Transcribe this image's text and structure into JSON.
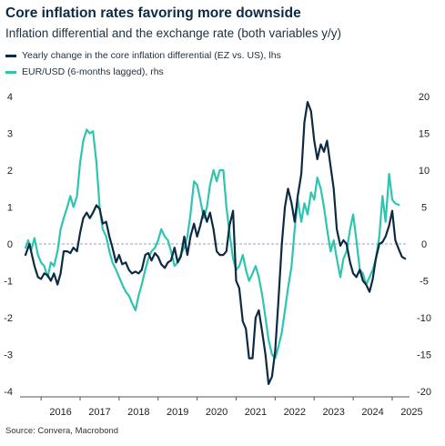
{
  "title": "Core inflation rates favoring more downside",
  "subtitle": "Inflation differential and the exchange rate (both variables y/y)",
  "source": "Source: Convera, Macrobond",
  "colors": {
    "navy": "#0c2a44",
    "teal": "#2ec5b0",
    "zero_line": "#9aa0c8"
  },
  "chart_data": {
    "type": "line",
    "legend": [
      "Yearly change in the core inflation differential (EZ vs. US), lhs",
      "EUR/USD (6-months lagged), rhs"
    ],
    "x_tick_labels": [
      "2016",
      "2017",
      "2018",
      "2019",
      "2020",
      "2021",
      "2022",
      "2023",
      "2024",
      "2025"
    ],
    "y_left": {
      "ticks": [
        4,
        3,
        2,
        1,
        0,
        -1,
        -2,
        -3,
        -4
      ],
      "range": [
        -4.2,
        4.2
      ]
    },
    "y_right": {
      "ticks": [
        20,
        15,
        10,
        5,
        0,
        -5,
        -10,
        -15,
        -20
      ],
      "range": [
        -21,
        21
      ]
    },
    "zero_line": "dashed",
    "series": [
      {
        "name": "Yearly change in the core inflation differential (EZ vs. US), lhs",
        "axis": "left",
        "color": "#0c2a44",
        "points": [
          [
            2015.6,
            -0.3
          ],
          [
            2015.7,
            0.0
          ],
          [
            2015.83,
            -0.6
          ],
          [
            2015.92,
            -0.9
          ],
          [
            2016.0,
            -0.95
          ],
          [
            2016.08,
            -0.8
          ],
          [
            2016.17,
            -0.85
          ],
          [
            2016.25,
            -1.0
          ],
          [
            2016.33,
            -0.8
          ],
          [
            2016.42,
            -1.1
          ],
          [
            2016.5,
            -0.8
          ],
          [
            2016.58,
            -0.2
          ],
          [
            2016.67,
            -0.2
          ],
          [
            2016.75,
            -0.25
          ],
          [
            2016.83,
            -0.1
          ],
          [
            2016.92,
            -0.2
          ],
          [
            2017.0,
            0.3
          ],
          [
            2017.08,
            0.7
          ],
          [
            2017.17,
            0.85
          ],
          [
            2017.25,
            0.7
          ],
          [
            2017.33,
            0.85
          ],
          [
            2017.42,
            1.05
          ],
          [
            2017.5,
            0.95
          ],
          [
            2017.58,
            0.55
          ],
          [
            2017.67,
            0.6
          ],
          [
            2017.75,
            0.2
          ],
          [
            2017.83,
            -0.1
          ],
          [
            2017.92,
            -0.5
          ],
          [
            2018.0,
            -0.3
          ],
          [
            2018.08,
            -0.55
          ],
          [
            2018.17,
            -0.5
          ],
          [
            2018.25,
            -0.7
          ],
          [
            2018.33,
            -0.8
          ],
          [
            2018.42,
            -0.75
          ],
          [
            2018.5,
            -0.8
          ],
          [
            2018.58,
            -0.7
          ],
          [
            2018.67,
            -0.3
          ],
          [
            2018.75,
            -0.25
          ],
          [
            2018.83,
            -0.45
          ],
          [
            2018.92,
            -0.25
          ],
          [
            2019.0,
            -0.35
          ],
          [
            2019.08,
            -0.55
          ],
          [
            2019.17,
            -0.65
          ],
          [
            2019.25,
            -0.5
          ],
          [
            2019.33,
            -0.45
          ],
          [
            2019.42,
            -0.1
          ],
          [
            2019.5,
            -0.5
          ],
          [
            2019.58,
            -0.35
          ],
          [
            2019.67,
            0.2
          ],
          [
            2019.75,
            -0.3
          ],
          [
            2019.83,
            0.2
          ],
          [
            2019.92,
            0.55
          ],
          [
            2020.0,
            0.2
          ],
          [
            2020.08,
            0.5
          ],
          [
            2020.17,
            0.9
          ],
          [
            2020.25,
            0.6
          ],
          [
            2020.33,
            0.85
          ],
          [
            2020.42,
            0.4
          ],
          [
            2020.5,
            -0.2
          ],
          [
            2020.58,
            -0.3
          ],
          [
            2020.67,
            -0.3
          ],
          [
            2020.75,
            -0.2
          ],
          [
            2020.83,
            0.5
          ],
          [
            2020.92,
            0.9
          ],
          [
            2021.0,
            -1.0
          ],
          [
            2021.08,
            -1.2
          ],
          [
            2021.17,
            -2.1
          ],
          [
            2021.25,
            -2.3
          ],
          [
            2021.33,
            -3.1
          ],
          [
            2021.42,
            -3.1
          ],
          [
            2021.5,
            -2.0
          ],
          [
            2021.58,
            -1.8
          ],
          [
            2021.67,
            -2.4
          ],
          [
            2021.75,
            -3.0
          ],
          [
            2021.83,
            -3.8
          ],
          [
            2021.92,
            -3.6
          ],
          [
            2022.0,
            -2.9
          ],
          [
            2022.08,
            -1.6
          ],
          [
            2022.17,
            0.0
          ],
          [
            2022.25,
            1.0
          ],
          [
            2022.33,
            1.5
          ],
          [
            2022.42,
            1.1
          ],
          [
            2022.5,
            0.6
          ],
          [
            2022.58,
            1.3
          ],
          [
            2022.67,
            1.9
          ],
          [
            2022.75,
            3.3
          ],
          [
            2022.83,
            3.85
          ],
          [
            2022.92,
            3.6
          ],
          [
            2023.0,
            2.8
          ],
          [
            2023.08,
            2.3
          ],
          [
            2023.17,
            2.7
          ],
          [
            2023.25,
            2.5
          ],
          [
            2023.33,
            2.8
          ],
          [
            2023.42,
            2.1
          ],
          [
            2023.5,
            1.5
          ],
          [
            2023.58,
            0.4
          ],
          [
            2023.67,
            -0.05
          ],
          [
            2023.75,
            0.1
          ],
          [
            2023.83,
            0.0
          ],
          [
            2023.92,
            -0.5
          ],
          [
            2024.0,
            -0.8
          ],
          [
            2024.08,
            -0.9
          ],
          [
            2024.17,
            -0.7
          ],
          [
            2024.25,
            -1.0
          ],
          [
            2024.33,
            -1.1
          ],
          [
            2024.42,
            -1.3
          ],
          [
            2024.5,
            -0.95
          ],
          [
            2024.58,
            -0.4
          ],
          [
            2024.67,
            0.0
          ],
          [
            2024.75,
            0.05
          ],
          [
            2024.83,
            0.2
          ],
          [
            2024.92,
            0.5
          ],
          [
            2025.0,
            0.9
          ],
          [
            2025.08,
            0.1
          ],
          [
            2025.17,
            -0.15
          ],
          [
            2025.25,
            -0.35
          ],
          [
            2025.33,
            -0.4
          ]
        ]
      },
      {
        "name": "EUR/USD (6-months lagged), rhs",
        "axis": "right",
        "color": "#2ec5b0",
        "points": [
          [
            2015.6,
            -0.5
          ],
          [
            2015.67,
            0.5
          ],
          [
            2015.75,
            -0.8
          ],
          [
            2015.83,
            0.8
          ],
          [
            2015.92,
            -1.5
          ],
          [
            2016.0,
            -2.5
          ],
          [
            2016.08,
            -3.0
          ],
          [
            2016.17,
            -4.5
          ],
          [
            2016.25,
            -2.5
          ],
          [
            2016.33,
            -3.0
          ],
          [
            2016.42,
            -1.0
          ],
          [
            2016.5,
            2.0
          ],
          [
            2016.58,
            3.5
          ],
          [
            2016.67,
            5.0
          ],
          [
            2016.75,
            6.5
          ],
          [
            2016.83,
            5.0
          ],
          [
            2016.92,
            6.5
          ],
          [
            2017.0,
            11.0
          ],
          [
            2017.08,
            14.0
          ],
          [
            2017.17,
            15.5
          ],
          [
            2017.25,
            15.0
          ],
          [
            2017.33,
            15.3
          ],
          [
            2017.42,
            11.0
          ],
          [
            2017.5,
            5.0
          ],
          [
            2017.58,
            2.0
          ],
          [
            2017.67,
            1.0
          ],
          [
            2017.75,
            -1.0
          ],
          [
            2017.83,
            -2.5
          ],
          [
            2017.92,
            -3.5
          ],
          [
            2018.0,
            -4.5
          ],
          [
            2018.08,
            -5.5
          ],
          [
            2018.17,
            -6.5
          ],
          [
            2018.25,
            -7.0
          ],
          [
            2018.33,
            -8.0
          ],
          [
            2018.42,
            -9.0
          ],
          [
            2018.5,
            -7.0
          ],
          [
            2018.58,
            -5.5
          ],
          [
            2018.67,
            -3.5
          ],
          [
            2018.75,
            -2.0
          ],
          [
            2018.83,
            -1.0
          ],
          [
            2018.92,
            -0.5
          ],
          [
            2019.0,
            0.5
          ],
          [
            2019.08,
            2.0
          ],
          [
            2019.17,
            1.0
          ],
          [
            2019.25,
            0.5
          ],
          [
            2019.33,
            -1.0
          ],
          [
            2019.42,
            -3.0
          ],
          [
            2019.5,
            -2.5
          ],
          [
            2019.58,
            -1.5
          ],
          [
            2019.67,
            -0.5
          ],
          [
            2019.75,
            1.0
          ],
          [
            2019.83,
            4.0
          ],
          [
            2019.92,
            8.5
          ],
          [
            2020.0,
            8.0
          ],
          [
            2020.08,
            6.0
          ],
          [
            2020.17,
            3.5
          ],
          [
            2020.25,
            5.0
          ],
          [
            2020.33,
            8.0
          ],
          [
            2020.42,
            10.0
          ],
          [
            2020.5,
            8.5
          ],
          [
            2020.58,
            10.0
          ],
          [
            2020.67,
            10.0
          ],
          [
            2020.75,
            5.0
          ],
          [
            2020.83,
            1.5
          ],
          [
            2020.92,
            -2.0
          ],
          [
            2021.0,
            -3.5
          ],
          [
            2021.08,
            -3.0
          ],
          [
            2021.17,
            -1.5
          ],
          [
            2021.25,
            -3.5
          ],
          [
            2021.33,
            -5.0
          ],
          [
            2021.42,
            -4.0
          ],
          [
            2021.5,
            -3.0
          ],
          [
            2021.58,
            -4.5
          ],
          [
            2021.67,
            -7.0
          ],
          [
            2021.75,
            -10.0
          ],
          [
            2021.83,
            -13.0
          ],
          [
            2021.92,
            -15.0
          ],
          [
            2022.0,
            -15.5
          ],
          [
            2022.08,
            -14.0
          ],
          [
            2022.17,
            -12.0
          ],
          [
            2022.25,
            -9.0
          ],
          [
            2022.33,
            -6.0
          ],
          [
            2022.42,
            -3.0
          ],
          [
            2022.5,
            2.0
          ],
          [
            2022.58,
            6.0
          ],
          [
            2022.67,
            3.0
          ],
          [
            2022.75,
            5.5
          ],
          [
            2022.83,
            4.0
          ],
          [
            2022.92,
            7.0
          ],
          [
            2023.0,
            6.0
          ],
          [
            2023.08,
            9.0
          ],
          [
            2023.17,
            7.5
          ],
          [
            2023.25,
            5.0
          ],
          [
            2023.33,
            2.0
          ],
          [
            2023.42,
            -1.0
          ],
          [
            2023.5,
            0.5
          ],
          [
            2023.58,
            -2.0
          ],
          [
            2023.67,
            -4.5
          ],
          [
            2023.75,
            -2.0
          ],
          [
            2023.83,
            -1.0
          ],
          [
            2023.92,
            2.0
          ],
          [
            2024.0,
            4.0
          ],
          [
            2024.08,
            0.5
          ],
          [
            2024.17,
            -3.5
          ],
          [
            2024.25,
            -4.0
          ],
          [
            2024.33,
            -5.5
          ],
          [
            2024.42,
            -4.5
          ],
          [
            2024.5,
            -3.5
          ],
          [
            2024.58,
            -2.0
          ],
          [
            2024.67,
            1.0
          ],
          [
            2024.75,
            6.5
          ],
          [
            2024.83,
            3.0
          ],
          [
            2024.92,
            9.5
          ],
          [
            2025.0,
            6.0
          ],
          [
            2025.08,
            5.5
          ],
          [
            2025.17,
            5.3
          ]
        ]
      }
    ]
  }
}
